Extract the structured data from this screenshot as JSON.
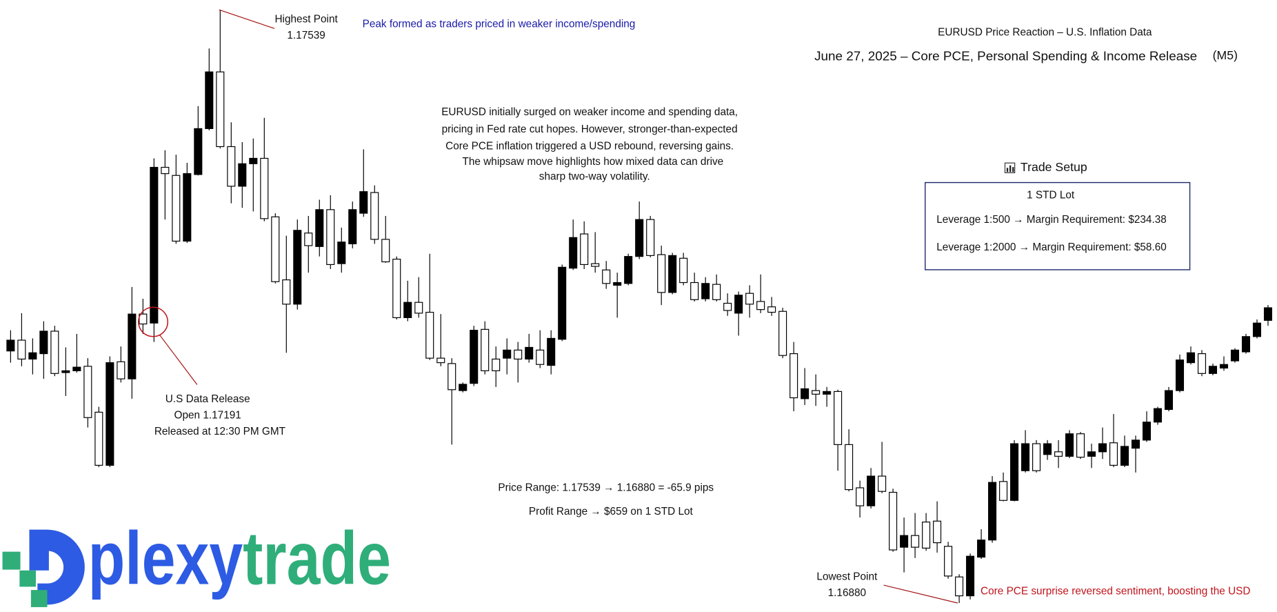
{
  "chart_data": {
    "type": "candlestick",
    "title": "EURUSD Price Reaction – U.S. Inflation Data",
    "subtitle": "June 27, 2025 – Core PCE, Personal Spending & Income Release",
    "timeframe": "(M5)",
    "up_color": "#000000",
    "down_color": "#ffffff",
    "wick_color": "#000000",
    "open": [
      1.1716,
      1.17172,
      1.17151,
      1.17157,
      1.17182,
      1.17136,
      1.17138,
      1.17143,
      1.17092,
      1.17033,
      1.17148,
      1.17129,
      1.17201,
      1.17191,
      1.17364,
      1.17355,
      1.17282,
      1.17356,
      1.17407,
      1.1747,
      1.17387,
      1.17343,
      1.17368,
      1.17374,
      1.17309,
      1.17239,
      1.17212,
      1.17291,
      1.17276,
      1.17317,
      1.17257,
      1.17279,
      1.17313,
      1.17336,
      1.17284,
      1.17262,
      1.17197,
      1.17214,
      1.17203,
      1.17152,
      1.17146,
      1.17116,
      1.17124,
      1.17184,
      1.17151,
      1.17152,
      1.17161,
      1.17151,
      1.17161,
      1.17144,
      1.17173,
      1.17252,
      1.1729,
      1.17257,
      1.1725,
      1.17233,
      1.17235,
      1.17265,
      1.17306,
      1.17267,
      1.17225,
      1.17263,
      1.17236,
      1.17218,
      1.17234,
      1.17213,
      1.17202,
      1.17224,
      1.17215,
      1.17209,
      1.17204,
      1.17157,
      1.17107,
      1.17116,
      1.17112,
      1.17115,
      1.17056,
      1.17008,
      1.16988,
      1.17021,
      1.17003,
      1.16942,
      1.16955,
      1.1697,
      1.16971,
      1.16943,
      1.16909,
      1.16888,
      1.16931,
      1.1695,
      1.17015,
      1.16994,
      1.17027,
      1.17057,
      1.17045,
      1.17048,
      1.17043,
      1.17068,
      1.17043,
      1.17048,
      1.17058,
      1.17033,
      1.17052,
      1.17061,
      1.17081,
      1.17095,
      1.17116,
      1.17147,
      1.17157,
      1.17135,
      1.17141,
      1.17149,
      1.17159,
      1.17176,
      1.17194
    ],
    "high": [
      1.17183,
      1.17202,
      1.17174,
      1.17193,
      1.17188,
      1.17164,
      1.17179,
      1.17152,
      1.17098,
      1.17154,
      1.17165,
      1.17231,
      1.17218,
      1.17374,
      1.17383,
      1.17378,
      1.17369,
      1.17432,
      1.17496,
      1.17539,
      1.17414,
      1.17392,
      1.17396,
      1.17419,
      1.17313,
      1.17288,
      1.17306,
      1.1731,
      1.17328,
      1.17333,
      1.17297,
      1.17326,
      1.17384,
      1.17344,
      1.1731,
      1.17265,
      1.17238,
      1.17242,
      1.17268,
      1.17201,
      1.17152,
      1.17125,
      1.17188,
      1.17193,
      1.17165,
      1.17174,
      1.1717,
      1.17179,
      1.17183,
      1.17183,
      1.17256,
      1.17306,
      1.17304,
      1.17292,
      1.1726,
      1.17247,
      1.17268,
      1.17326,
      1.1731,
      1.17277,
      1.17269,
      1.17269,
      1.17247,
      1.17242,
      1.17245,
      1.17224,
      1.17226,
      1.17233,
      1.17245,
      1.1722,
      1.17208,
      1.1717,
      1.17141,
      1.17134,
      1.1712,
      1.17117,
      1.17073,
      1.17016,
      1.1703,
      1.17059,
      1.17007,
      1.16975,
      1.1698,
      1.1698,
      1.16993,
      1.16948,
      1.16912,
      1.16935,
      1.16962,
      1.17021,
      1.17025,
      1.17061,
      1.17072,
      1.17061,
      1.17061,
      1.17061,
      1.17072,
      1.1707,
      1.17057,
      1.17075,
      1.1709,
      1.17066,
      1.17066,
      1.17093,
      1.17098,
      1.1712,
      1.17156,
      1.17165,
      1.17161,
      1.17146,
      1.17154,
      1.17163,
      1.17179,
      1.17195,
      1.17211
    ],
    "low": [
      1.17147,
      1.17143,
      1.17134,
      1.17129,
      1.17132,
      1.1711,
      1.17136,
      1.17075,
      1.17031,
      1.17031,
      1.17125,
      1.17107,
      1.17179,
      1.1717,
      1.17306,
      1.17279,
      1.1728,
      1.17355,
      1.17405,
      1.17385,
      1.17324,
      1.17319,
      1.17315,
      1.17304,
      1.17235,
      1.17158,
      1.17206,
      1.17247,
      1.17265,
      1.17251,
      1.17247,
      1.17274,
      1.17309,
      1.17279,
      1.17258,
      1.17195,
      1.17193,
      1.17197,
      1.1715,
      1.17143,
      1.17056,
      1.17114,
      1.17121,
      1.17134,
      1.1712,
      1.17134,
      1.17125,
      1.17147,
      1.17141,
      1.17134,
      1.17171,
      1.1725,
      1.17251,
      1.17247,
      1.17229,
      1.17197,
      1.17233,
      1.17262,
      1.17264,
      1.17211,
      1.17223,
      1.17233,
      1.17215,
      1.17215,
      1.17215,
      1.17199,
      1.17177,
      1.17197,
      1.17202,
      1.17199,
      1.17152,
      1.17093,
      1.171,
      1.17099,
      1.17098,
      1.17027,
      1.17004,
      1.16975,
      1.16985,
      1.17002,
      1.16937,
      1.16914,
      1.1693,
      1.16938,
      1.16936,
      1.16907,
      1.1688,
      1.16884,
      1.16929,
      1.16947,
      1.16993,
      1.16993,
      1.17025,
      1.17025,
      1.17039,
      1.1703,
      1.17041,
      1.1704,
      1.1703,
      1.1704,
      1.17031,
      1.17031,
      1.17025,
      1.17059,
      1.17078,
      1.17093,
      1.17114,
      1.17145,
      1.17132,
      1.17133,
      1.17138,
      1.17147,
      1.17157,
      1.17174,
      1.17188
    ],
    "close": [
      1.17172,
      1.17151,
      1.17158,
      1.17182,
      1.17135,
      1.17138,
      1.17142,
      1.17086,
      1.17033,
      1.17147,
      1.17129,
      1.17201,
      1.1719,
      1.17364,
      1.17357,
      1.17282,
      1.17357,
      1.17407,
      1.1747,
      1.17387,
      1.17343,
      1.17368,
      1.17374,
      1.17307,
      1.17237,
      1.17212,
      1.17294,
      1.17277,
      1.17317,
      1.17256,
      1.17281,
      1.17317,
      1.17337,
      1.17284,
      1.17259,
      1.17197,
      1.17214,
      1.17202,
      1.17152,
      1.17147,
      1.17117,
      1.17123,
      1.17183,
      1.17138,
      1.17138,
      1.17161,
      1.17151,
      1.17164,
      1.17145,
      1.17174,
      1.17253,
      1.17286,
      1.17256,
      1.17254,
      1.17235,
      1.17236,
      1.17265,
      1.17306,
      1.17266,
      1.17225,
      1.17266,
      1.17236,
      1.17217,
      1.17235,
      1.17217,
      1.17205,
      1.17222,
      1.17212,
      1.17206,
      1.17203,
      1.17155,
      1.17108,
      1.17118,
      1.17112,
      1.17115,
      1.17056,
      1.17006,
      1.16988,
      1.17021,
      1.17004,
      1.16939,
      1.16955,
      1.16942,
      1.16941,
      1.16947,
      1.1691,
      1.16888,
      1.16932,
      1.1695,
      1.17014,
      1.16994,
      1.17057,
      1.17057,
      1.17027,
      1.17057,
      1.17043,
      1.17068,
      1.17042,
      1.17048,
      1.17057,
      1.17033,
      1.17054,
      1.17061,
      1.17081,
      1.17096,
      1.17116,
      1.1715,
      1.17158,
      1.17135,
      1.17143,
      1.17145,
      1.17161,
      1.17176,
      1.17191,
      1.17208
    ]
  },
  "annotations": {
    "highest": {
      "label": "Highest Point",
      "value": "1.17539"
    },
    "peak_note": "Peak formed as traders priced in weaker income/spending",
    "summary": [
      "EURUSD initially surged on weaker income and spending data,",
      "pricing in Fed rate cut hopes. However, stronger-than-expected",
      "Core PCE inflation triggered a USD rebound, reversing gains.",
      "The whipsaw move highlights how mixed data can drive",
      "sharp two-way volatility."
    ],
    "release": [
      "U.S Data Release",
      "Open 1.17191",
      "Released at 12:30 PM GMT"
    ],
    "price_range": "Price Range: 1.17539 → 1.16880 = -65.9 pips",
    "profit_range": "Profit Range → $659 on 1 STD Lot",
    "lowest": {
      "label": "Lowest Point",
      "value": "1.16880"
    },
    "reversal_note": "Core PCE surprise reversed sentiment, boosting the USD"
  },
  "trade_setup": {
    "title": "Trade Setup",
    "lot": "1 STD Lot",
    "lines": [
      "Leverage 1:500 → Margin Requirement: $234.38",
      "Leverage 1:2000 → Margin Requirement: $58.60"
    ]
  },
  "logo": {
    "part1": "plexy",
    "part2": "trade"
  }
}
